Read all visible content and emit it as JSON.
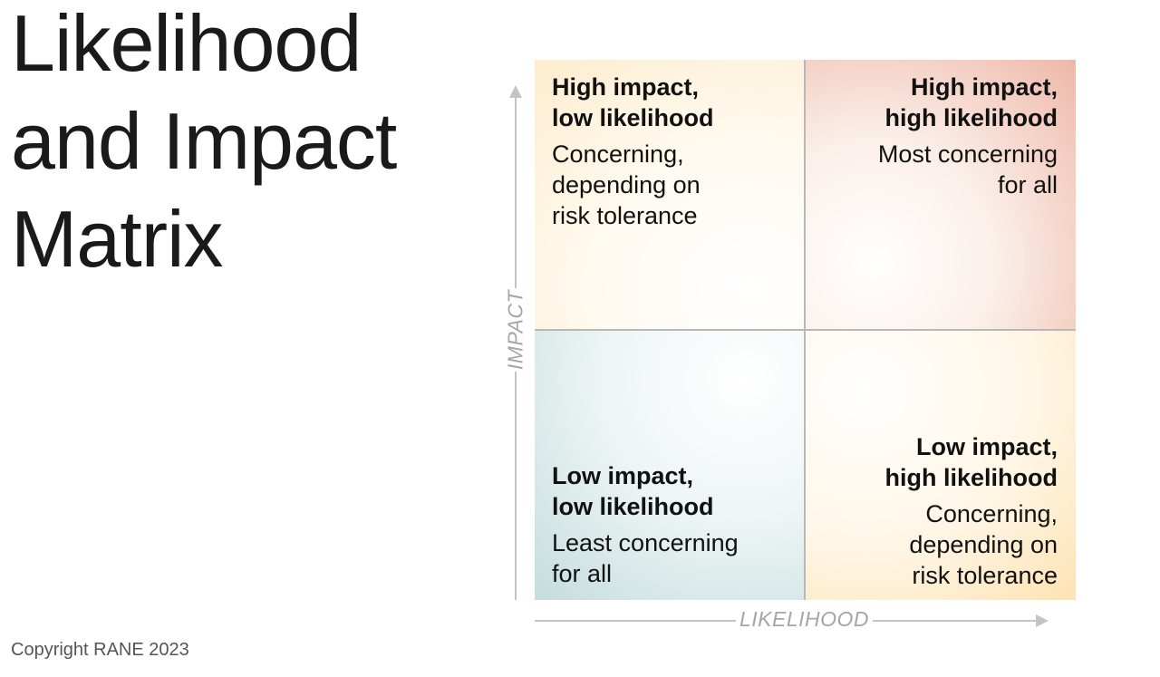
{
  "title": {
    "line1": "Likelihood",
    "line2": "and Impact",
    "line3": "Matrix"
  },
  "copyright": "Copyright RANE 2023",
  "axes": {
    "y_label": "IMPACT",
    "x_label": "LIKELIHOOD"
  },
  "quadrants": {
    "top_left": {
      "heading": [
        "High impact,",
        "low likelihood"
      ],
      "description": [
        "Concerning,",
        "depending on",
        "risk tolerance"
      ],
      "color": "#fde9c3"
    },
    "top_right": {
      "heading": [
        "High impact,",
        "high likelihood"
      ],
      "description": [
        "Most concerning",
        "for all"
      ],
      "color": "#d6725a"
    },
    "bottom_left": {
      "heading": [
        "Low impact,",
        "low likelihood"
      ],
      "description": [
        "Least concerning",
        "for all"
      ],
      "color": "#b9d6d6"
    },
    "bottom_right": {
      "heading": [
        "Low impact,",
        "high likelihood"
      ],
      "description": [
        "Concerning,",
        "depending on",
        "risk tolerance"
      ],
      "color": "#fcd99a"
    }
  }
}
